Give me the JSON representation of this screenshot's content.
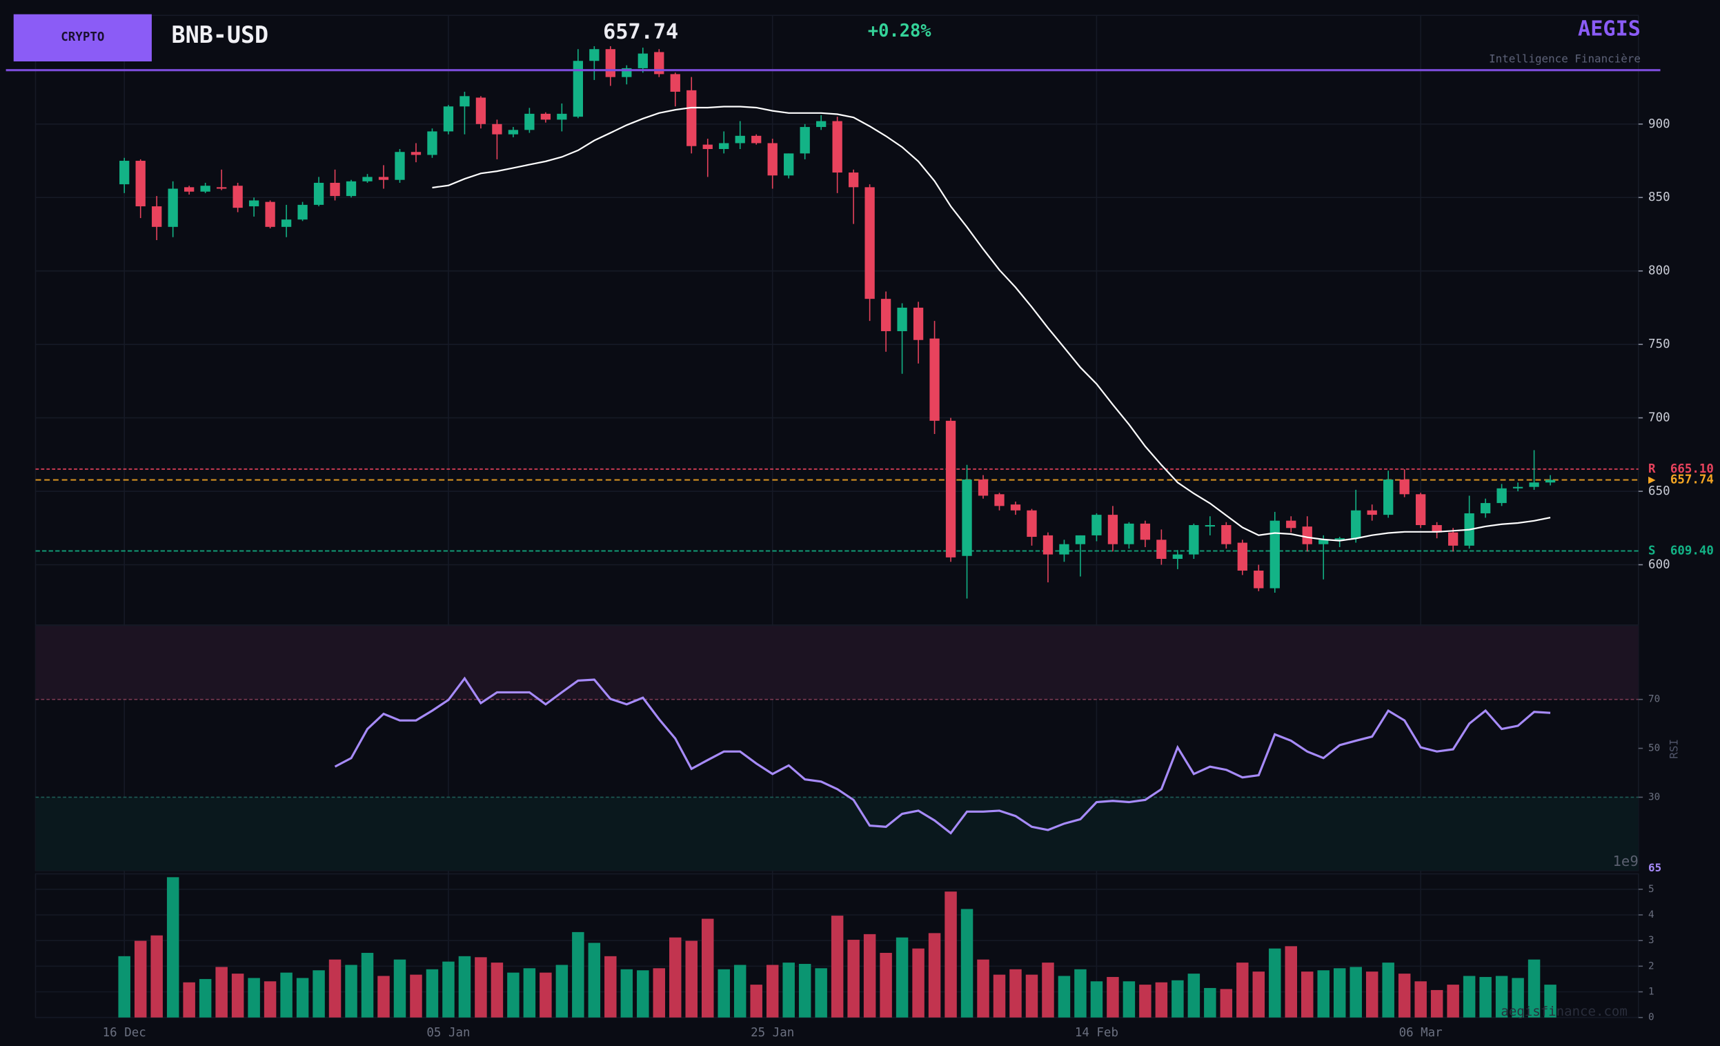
{
  "header": {
    "badge": "CRYPTO",
    "symbol": "BNB-USD",
    "price": 657.74,
    "change": "+0.28%",
    "brand": "AEGIS",
    "tagline": "Intelligence Financière",
    "watermark": "aegisfinance.com"
  },
  "chart_data": [
    {
      "type": "candlestick",
      "x": [
        "16 Dec",
        "17 Dec",
        "18 Dec",
        "19 Dec",
        "20 Dec",
        "21 Dec",
        "22 Dec",
        "23 Dec",
        "24 Dec",
        "25 Dec",
        "26 Dec",
        "27 Dec",
        "28 Dec",
        "29 Dec",
        "30 Dec",
        "31 Dec",
        "01 Jan",
        "02 Jan",
        "03 Jan",
        "04 Jan",
        "05 Jan",
        "06 Jan",
        "07 Jan",
        "08 Jan",
        "09 Jan",
        "10 Jan",
        "11 Jan",
        "12 Jan",
        "13 Jan",
        "14 Jan",
        "15 Jan",
        "16 Jan",
        "17 Jan",
        "18 Jan",
        "19 Jan",
        "20 Jan",
        "21 Jan",
        "22 Jan",
        "23 Jan",
        "24 Jan",
        "25 Jan",
        "26 Jan",
        "27 Jan",
        "28 Jan",
        "29 Jan",
        "30 Jan",
        "31 Jan",
        "01 Feb",
        "02 Feb",
        "03 Feb",
        "04 Feb",
        "05 Feb",
        "06 Feb",
        "07 Feb",
        "08 Feb",
        "09 Feb",
        "10 Feb",
        "11 Feb",
        "12 Feb",
        "13 Feb",
        "14 Feb",
        "15 Feb",
        "16 Feb",
        "17 Feb",
        "18 Feb",
        "19 Feb",
        "20 Feb",
        "21 Feb",
        "22 Feb",
        "23 Feb",
        "24 Feb",
        "25 Feb",
        "26 Feb",
        "27 Feb",
        "28 Feb",
        "01 Mar",
        "02 Mar",
        "03 Mar",
        "04 Mar",
        "05 Mar",
        "06 Mar",
        "07 Mar",
        "08 Mar",
        "09 Mar",
        "10 Mar",
        "11 Mar",
        "12 Mar",
        "13 Mar",
        "14 Mar"
      ],
      "open": [
        859,
        875,
        844,
        830,
        857,
        854,
        857,
        858,
        844,
        847,
        830,
        835,
        845,
        860,
        851,
        861,
        864,
        862,
        881,
        879,
        895,
        912,
        918,
        900,
        893,
        896,
        907,
        903,
        905,
        943,
        951,
        932,
        938,
        949,
        934,
        923,
        886,
        883,
        887,
        892,
        887,
        865,
        880,
        898,
        902,
        867,
        857,
        781,
        759,
        775,
        754,
        698,
        606,
        658,
        648,
        641,
        637,
        620,
        607,
        614,
        620,
        634,
        614,
        628,
        617,
        604,
        607,
        626,
        627,
        615,
        596,
        584,
        630,
        626,
        614,
        617,
        618,
        637,
        634,
        658,
        648,
        627,
        622,
        613,
        635,
        642,
        652,
        653,
        656
      ],
      "high": [
        877,
        876,
        851,
        861,
        858,
        860,
        869,
        860,
        850,
        848,
        845,
        847,
        864,
        869,
        862,
        866,
        872,
        883,
        887,
        897,
        913,
        922,
        919,
        903,
        898,
        911,
        908,
        914,
        951,
        953,
        953,
        940,
        952,
        951,
        935,
        932,
        890,
        895,
        902,
        893,
        890,
        880,
        900,
        906,
        905,
        869,
        859,
        786,
        778,
        779,
        766,
        700,
        668,
        661,
        649,
        643,
        638,
        622,
        617,
        620,
        635,
        640,
        629,
        630,
        624,
        610,
        628,
        633,
        629,
        617,
        600,
        636,
        633,
        633,
        620,
        619,
        651,
        641,
        664,
        665,
        649,
        629,
        625,
        647,
        645,
        655,
        656,
        678,
        661
      ],
      "low": [
        853,
        836,
        821,
        823,
        852,
        853,
        855,
        840,
        837,
        829,
        823,
        834,
        844,
        848,
        850,
        860,
        856,
        860,
        874,
        877,
        893,
        893,
        897,
        876,
        891,
        894,
        901,
        895,
        904,
        930,
        926,
        927,
        935,
        932,
        912,
        880,
        864,
        880,
        883,
        886,
        856,
        863,
        876,
        896,
        853,
        832,
        766,
        745,
        730,
        737,
        689,
        602,
        577,
        645,
        637,
        634,
        613,
        588,
        602,
        592,
        616,
        609,
        611,
        612,
        600,
        597,
        604,
        620,
        611,
        593,
        582,
        581,
        622,
        609,
        590,
        612,
        615,
        630,
        632,
        646,
        625,
        618,
        609,
        611,
        632,
        640,
        650,
        651,
        654
      ],
      "close": [
        875,
        844,
        830,
        856,
        854,
        858,
        856,
        843,
        848,
        830,
        835,
        845,
        860,
        851,
        861,
        864,
        862,
        881,
        879,
        895,
        912,
        919,
        900,
        893,
        896,
        907,
        903,
        907,
        943,
        951,
        932,
        938,
        948,
        934,
        922,
        885,
        883,
        887,
        892,
        887,
        865,
        880,
        898,
        902,
        867,
        857,
        781,
        759,
        775,
        753,
        698,
        605,
        658,
        647,
        640,
        637,
        619,
        607,
        614,
        620,
        634,
        614,
        628,
        617,
        604,
        607,
        627,
        627,
        614,
        596,
        584,
        630,
        625,
        614,
        617,
        618,
        637,
        634,
        658,
        648,
        627,
        622,
        613,
        635,
        642,
        652,
        653,
        656,
        657.74
      ],
      "up_color": "#13b386",
      "down_color": "#e8435d",
      "ma": {
        "color": "#ffffff",
        "values": [
          null,
          null,
          null,
          null,
          null,
          null,
          null,
          null,
          null,
          null,
          null,
          null,
          null,
          null,
          null,
          null,
          null,
          null,
          null,
          856.7,
          858.2,
          862.7,
          866.4,
          867.9,
          870.1,
          872.4,
          874.6,
          877.6,
          882.1,
          888.8,
          894.0,
          899.3,
          903.7,
          907.5,
          909.7,
          911.2,
          911.2,
          911.9,
          911.9,
          911.2,
          909.0,
          907.5,
          907.5,
          907.5,
          906.7,
          904.5,
          898.5,
          891.8,
          884.3,
          874.6,
          861.2,
          844.0,
          829.9,
          814.9,
          800.7,
          788.8,
          775.4,
          761.2,
          747.8,
          734.3,
          723.1,
          709.0,
          695.5,
          680.6,
          667.9,
          656.0,
          648.5,
          641.8,
          633.6,
          625.4,
          620.1,
          621.6,
          620.9,
          618.7,
          617.2,
          616.4,
          617.9,
          620.1,
          621.6,
          622.4,
          622.4,
          622.4,
          623.1,
          623.9,
          626.1,
          627.6,
          628.4,
          629.9,
          632.1
        ]
      },
      "resistance": {
        "label": "R",
        "value": 665.1,
        "value_label": "665.10",
        "color": "#e8435d"
      },
      "support": {
        "label": "S",
        "value": 609.4,
        "value_label": "609.40",
        "color": "#13b386"
      },
      "last": {
        "label": "▶",
        "value": 657.74,
        "color": "#f5a623"
      },
      "ylim": [
        559,
        974
      ],
      "yticks": [
        600,
        650,
        700,
        750,
        800,
        850,
        900
      ],
      "xticks": [
        "16 Dec",
        "05 Jan",
        "25 Jan",
        "14 Feb",
        "06 Mar"
      ],
      "grid": true
    },
    {
      "type": "line",
      "ylabel": "RSI",
      "color": "#a78bfa",
      "last_label": "65",
      "values": [
        null,
        null,
        null,
        null,
        null,
        null,
        null,
        null,
        null,
        null,
        null,
        null,
        null,
        42.5,
        46.0,
        57.9,
        64.1,
        61.4,
        61.4,
        65.4,
        69.8,
        78.6,
        68.5,
        72.9,
        72.9,
        72.9,
        68.0,
        72.9,
        77.7,
        78.1,
        70.2,
        68.0,
        70.7,
        61.9,
        54.0,
        41.6,
        45.2,
        48.7,
        48.7,
        43.8,
        39.5,
        43.0,
        37.3,
        36.4,
        33.3,
        28.9,
        18.4,
        17.9,
        23.2,
        24.5,
        20.5,
        15.3,
        24.1,
        24.1,
        24.5,
        22.3,
        17.9,
        16.6,
        19.2,
        21.0,
        28.0,
        28.5,
        28.0,
        28.9,
        33.3,
        50.4,
        39.5,
        42.5,
        41.2,
        38.1,
        39.0,
        55.7,
        53.1,
        48.7,
        46.0,
        51.3,
        53.1,
        54.8,
        65.4,
        61.4,
        50.4,
        48.7,
        49.6,
        60.1,
        65.4,
        57.9,
        59.2,
        64.9,
        64.5
      ],
      "overbought": 70,
      "oversold": 30,
      "ylim": [
        0,
        100
      ],
      "yticks": [
        30,
        50,
        70
      ]
    },
    {
      "type": "bar",
      "offset_label": "1e9",
      "up_color": "#0b9571",
      "down_color": "#c2344f",
      "values": [
        2.39,
        2.99,
        3.2,
        5.47,
        1.37,
        1.5,
        1.97,
        1.71,
        1.54,
        1.41,
        1.75,
        1.54,
        1.84,
        2.26,
        2.05,
        2.52,
        1.62,
        2.26,
        1.67,
        1.88,
        2.18,
        2.39,
        2.35,
        2.14,
        1.75,
        1.92,
        1.75,
        2.05,
        3.33,
        2.91,
        2.39,
        1.88,
        1.84,
        1.92,
        3.12,
        2.99,
        3.85,
        1.88,
        2.05,
        1.28,
        2.05,
        2.14,
        2.09,
        1.92,
        3.97,
        3.03,
        3.25,
        2.52,
        3.12,
        2.69,
        3.29,
        4.91,
        4.23,
        2.26,
        1.67,
        1.88,
        1.67,
        2.14,
        1.62,
        1.88,
        1.41,
        1.58,
        1.41,
        1.28,
        1.37,
        1.45,
        1.71,
        1.15,
        1.11,
        2.14,
        1.79,
        2.69,
        2.78,
        1.79,
        1.84,
        1.92,
        1.97,
        1.79,
        2.14,
        1.71,
        1.41,
        1.07,
        1.28,
        1.62,
        1.58,
        1.62,
        1.54,
        2.26,
        1.28
      ],
      "ylim": [
        0,
        5.6
      ],
      "yticks": [
        0,
        1,
        2,
        3,
        4,
        5
      ]
    }
  ]
}
